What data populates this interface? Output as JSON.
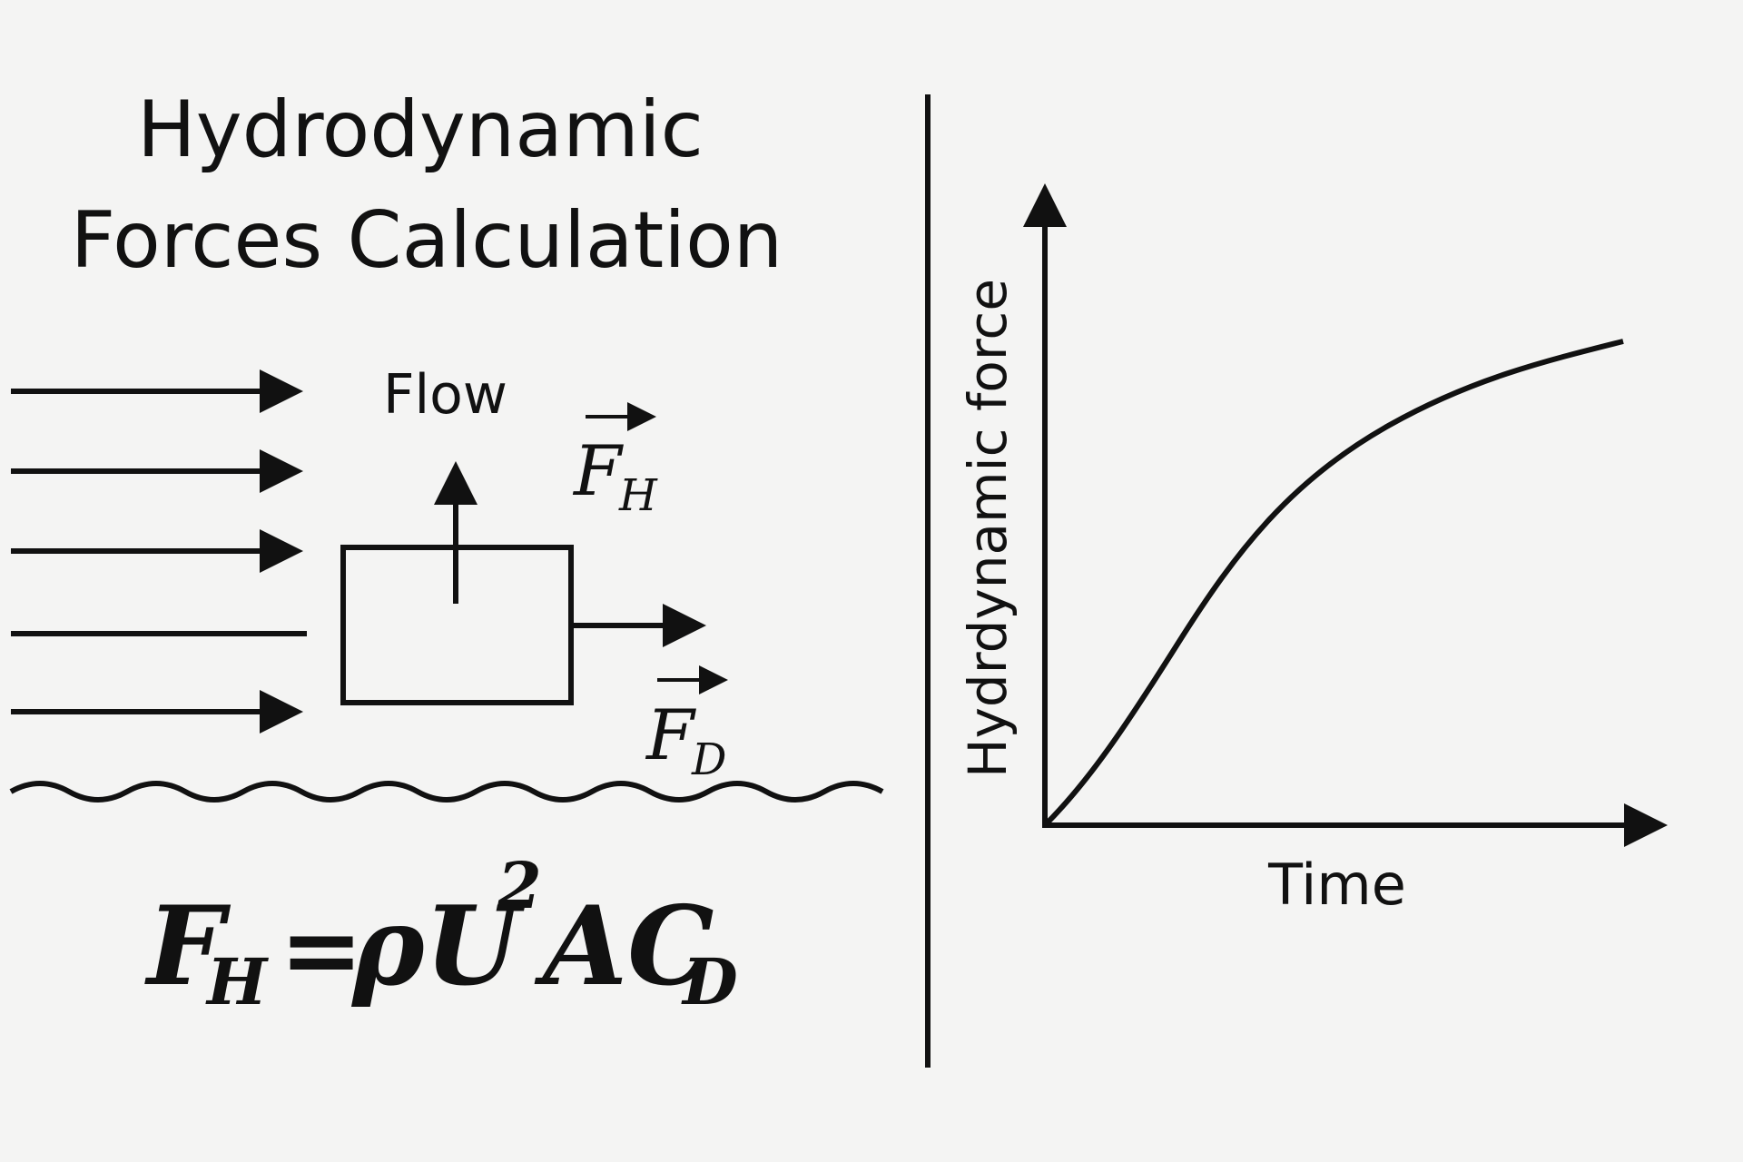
{
  "title": {
    "lines": [
      "Hydrodynamic",
      "Forces Calculation"
    ]
  },
  "diagram": {
    "flow_label": "Flow",
    "lift_vector": {
      "symbol": "F",
      "subscript": "H"
    },
    "drag_vector": {
      "symbol": "F",
      "subscript": "D"
    }
  },
  "formula": {
    "lhs": "F",
    "lhs_sub": "H",
    "equals": "=",
    "rhs": "ρU",
    "exponent": "2",
    "rhs2": "AC",
    "rhs2_sub": "D"
  },
  "graph": {
    "y_label": "Hydrdynamic force",
    "x_label": "Time"
  }
}
